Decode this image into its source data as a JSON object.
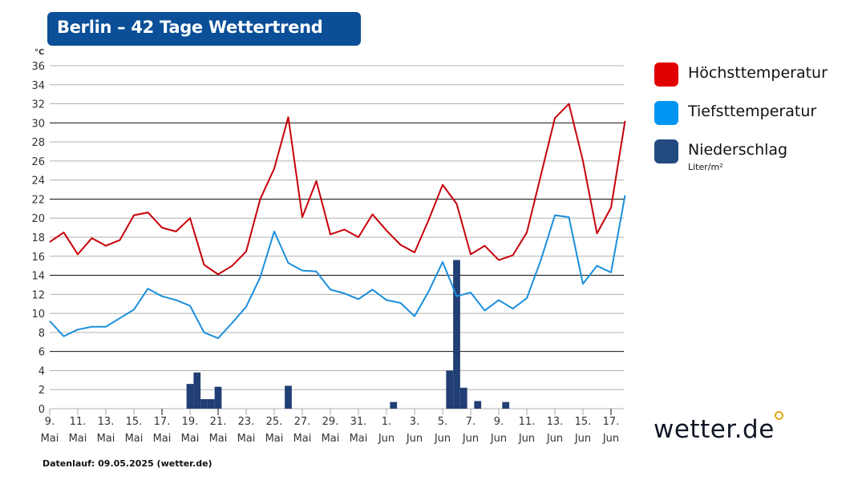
{
  "title": "Berlin – 42 Tage Wettertrend",
  "footer": "Datenlauf: 09.05.2025 (wetter.de)",
  "logo_text": "wetter.de",
  "colors": {
    "high": "#c8000a",
    "low": "#1a8fdc",
    "precip": "#213f74",
    "title_bg": "#0a4f97",
    "legend_high": "#e00000",
    "legend_low": "#0095f0",
    "legend_precip": "#234a80"
  },
  "legend": [
    {
      "label": "Höchsttemperatur",
      "color": "#e00000"
    },
    {
      "label": "Tiefsttemperatur",
      "color": "#0095f0"
    },
    {
      "label": "Niederschlag",
      "color": "#234a80",
      "unit": "Liter/m²"
    }
  ],
  "chart_data": {
    "type": "line",
    "title": "Berlin – 42 Tage Wettertrend",
    "ylabel": "°C",
    "ylim": [
      0,
      36
    ],
    "yticks": [
      0,
      2,
      4,
      6,
      8,
      10,
      12,
      14,
      16,
      18,
      20,
      22,
      24,
      26,
      28,
      30,
      32,
      34,
      36
    ],
    "grid": true,
    "legend_position": "right",
    "xtick_labels": [
      [
        "9.",
        "Mai"
      ],
      [
        "11.",
        "Mai"
      ],
      [
        "13.",
        "Mai"
      ],
      [
        "15.",
        "Mai"
      ],
      [
        "17.",
        "Mai"
      ],
      [
        "19.",
        "Mai"
      ],
      [
        "21.",
        "Mai"
      ],
      [
        "23.",
        "Mai"
      ],
      [
        "25.",
        "Mai"
      ],
      [
        "27.",
        "Mai"
      ],
      [
        "29.",
        "Mai"
      ],
      [
        "31.",
        "Mai"
      ],
      [
        "1.",
        "Jun"
      ],
      [
        "3.",
        "Jun"
      ],
      [
        "5.",
        "Jun"
      ],
      [
        "7.",
        "Jun"
      ],
      [
        "9.",
        "Jun"
      ],
      [
        "11.",
        "Jun"
      ],
      [
        "13.",
        "Jun"
      ],
      [
        "15.",
        "Jun"
      ],
      [
        "17.",
        "Jun"
      ]
    ],
    "series": [
      {
        "name": "Höchsttemperatur",
        "type": "line",
        "values": [
          17.5,
          18.5,
          16.2,
          17.9,
          17.1,
          17.7,
          20.3,
          20.6,
          19.0,
          18.6,
          20.0,
          15.1,
          14.1,
          15.0,
          16.5,
          22.0,
          25.2,
          30.6,
          20.1,
          23.9,
          18.3,
          18.8,
          18.0,
          20.4,
          18.7,
          17.2,
          16.4,
          19.8,
          23.5,
          21.5,
          16.2,
          17.1,
          15.6,
          16.1,
          18.5,
          24.5,
          30.5,
          32.0,
          26.0,
          18.4,
          21.1,
          30.2
        ]
      },
      {
        "name": "Tiefsttemperatur",
        "type": "line",
        "values": [
          9.2,
          7.6,
          8.3,
          8.6,
          8.6,
          9.5,
          10.4,
          12.6,
          11.8,
          11.4,
          10.8,
          8.0,
          7.4,
          9.0,
          10.7,
          13.8,
          18.6,
          15.3,
          14.5,
          14.4,
          12.5,
          12.1,
          11.5,
          12.5,
          11.4,
          11.1,
          9.7,
          12.3,
          15.4,
          11.8,
          12.2,
          10.3,
          11.4,
          10.5,
          11.6,
          15.6,
          20.3,
          20.1,
          13.1,
          15.0,
          14.3,
          22.4
        ]
      },
      {
        "name": "Niederschlag",
        "unit": "Liter/m²",
        "type": "bar",
        "resolution": "12h",
        "values": [
          0,
          0,
          0,
          0,
          0,
          0,
          0,
          0,
          0,
          0,
          0,
          0,
          0,
          0,
          0,
          0,
          0,
          0,
          0,
          0,
          2.6,
          3.8,
          1.0,
          1.0,
          2.3,
          0,
          0,
          0,
          0,
          0,
          0,
          0,
          0,
          0,
          2.4,
          0,
          0,
          0,
          0,
          0,
          0,
          0,
          0,
          0,
          0,
          0,
          0,
          0,
          0,
          0.7,
          0,
          0,
          0,
          0,
          0,
          0,
          0,
          4.0,
          15.6,
          2.2,
          0,
          0.8,
          0,
          0,
          0,
          0.7,
          0,
          0,
          0,
          0,
          0,
          0,
          0,
          0,
          0,
          0,
          0,
          0,
          0,
          0,
          0,
          0,
          0,
          0
        ]
      }
    ]
  }
}
